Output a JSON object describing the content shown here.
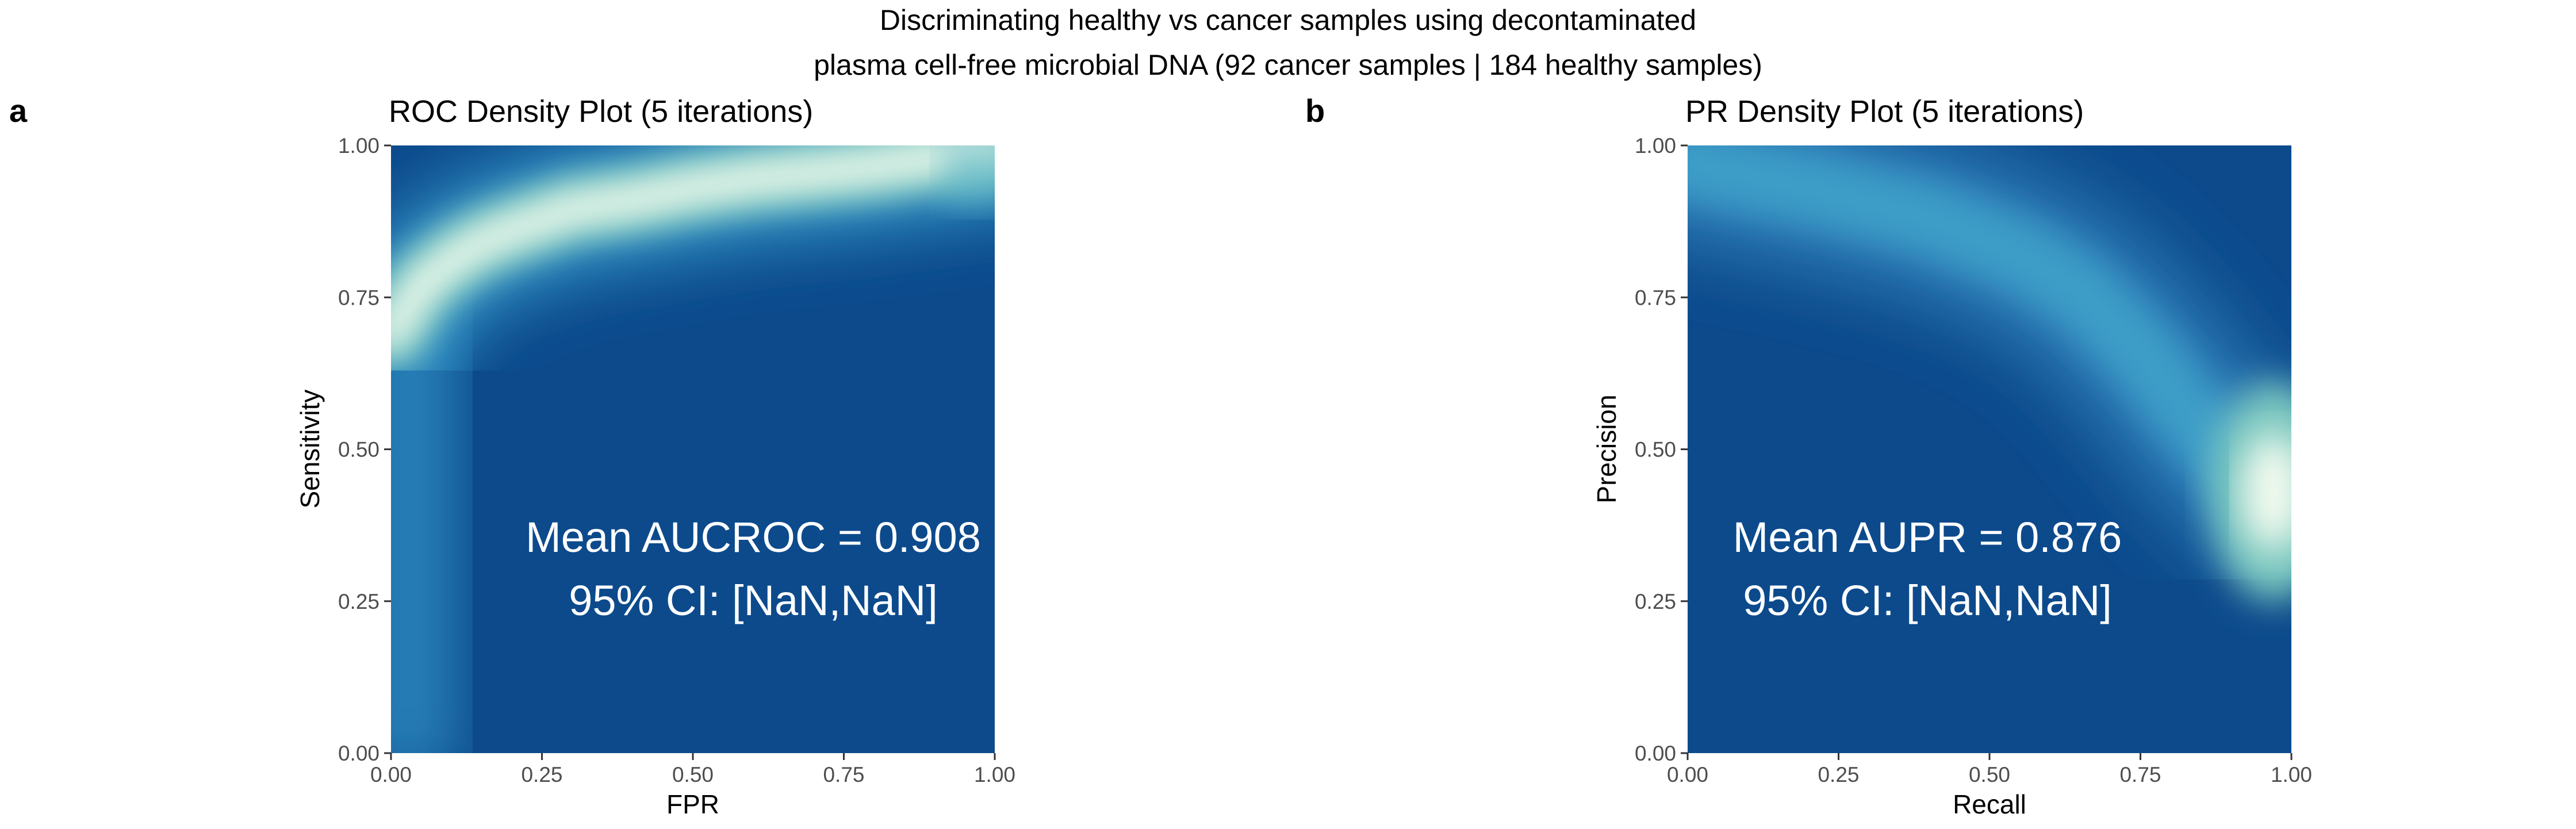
{
  "figure": {
    "title_line1": "Discriminating healthy vs cancer samples using decontaminated",
    "title_line2": "plasma cell-free microbial DNA (92 cancer samples | 184 healthy samples)"
  },
  "colors": {
    "density_low": "#0c4a8c",
    "density_mid": "#2f8dc2",
    "density_upper": "#7ec9c0",
    "density_high": "#f2faee"
  },
  "chart_data": [
    {
      "type": "heatmap",
      "panel_label": "a",
      "title": "ROC Density Plot (5 iterations)",
      "xlabel": "FPR",
      "ylabel": "Sensitivity",
      "xlim": [
        0,
        1
      ],
      "ylim": [
        0,
        1
      ],
      "xticks": [
        "0.00",
        "0.25",
        "0.50",
        "0.75",
        "1.00"
      ],
      "yticks": [
        "0.00",
        "0.25",
        "0.50",
        "0.75",
        "1.00"
      ],
      "grid": false,
      "density_ridge": {
        "x": [
          0.0,
          0.05,
          0.1,
          0.15,
          0.2,
          0.3,
          0.4,
          0.5,
          0.6,
          0.7,
          0.8,
          0.9,
          1.0
        ],
        "y": [
          0.69,
          0.77,
          0.81,
          0.84,
          0.86,
          0.895,
          0.91,
          0.93,
          0.945,
          0.955,
          0.965,
          0.98,
          0.99
        ]
      },
      "annotation_line1": "Mean AUCROC = 0.908",
      "annotation_line2": "95% CI: [NaN,NaN]"
    },
    {
      "type": "heatmap",
      "panel_label": "b",
      "title": "PR Density Plot (5 iterations)",
      "xlabel": "Recall",
      "ylabel": "Precision",
      "xlim": [
        0,
        1
      ],
      "ylim": [
        0,
        1
      ],
      "xticks": [
        "0.00",
        "0.25",
        "0.50",
        "0.75",
        "1.00"
      ],
      "yticks": [
        "0.00",
        "0.25",
        "0.50",
        "0.75",
        "1.00"
      ],
      "grid": false,
      "density_ridge": {
        "x": [
          0.0,
          0.2,
          0.4,
          0.55,
          0.65,
          0.75,
          0.82,
          0.88,
          0.93,
          0.97,
          1.0
        ],
        "y": [
          0.97,
          0.93,
          0.88,
          0.82,
          0.76,
          0.66,
          0.57,
          0.5,
          0.45,
          0.42,
          0.4
        ]
      },
      "density_peak": {
        "x": 0.97,
        "y": 0.43
      },
      "annotation_line1": "Mean AUPR = 0.876",
      "annotation_line2": "95% CI: [NaN,NaN]"
    }
  ]
}
